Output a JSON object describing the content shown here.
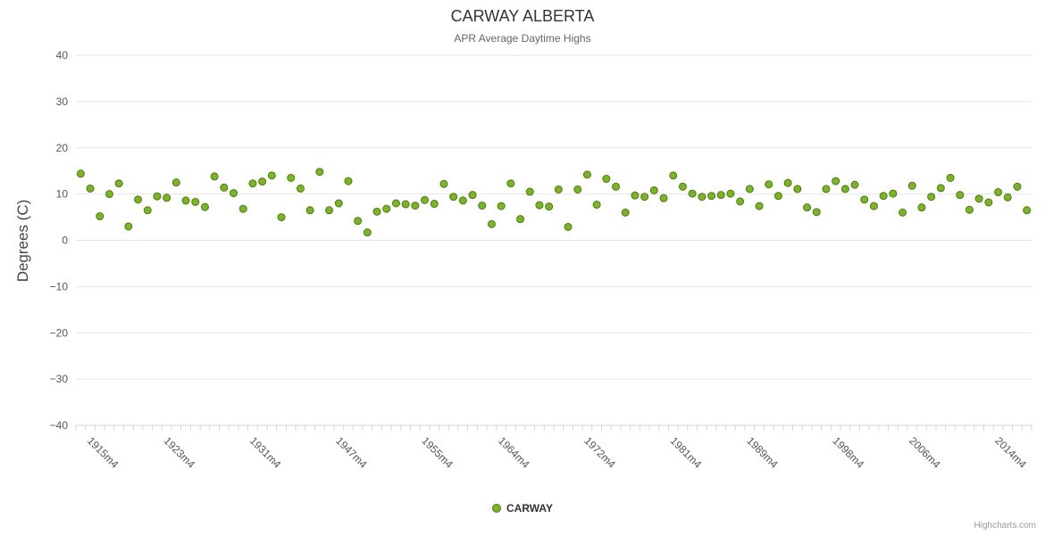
{
  "header": {
    "title": "CARWAY ALBERTA",
    "subtitle": "APR Average Daytime Highs"
  },
  "legend": {
    "label": "CARWAY"
  },
  "credits": "Highcharts.com",
  "colors": {
    "point_fill": "#7cb32a",
    "point_stroke": "#4e7a10",
    "grid": "#e6e6e6",
    "axis": "#ccd6eb",
    "tick_text": "#555555"
  },
  "chart_data": {
    "type": "scatter",
    "title": "CARWAY ALBERTA",
    "subtitle": "APR Average Daytime Highs",
    "xlabel": "",
    "ylabel": "Degrees (C)",
    "ylim": [
      -40,
      40
    ],
    "yticks": [
      40,
      30,
      20,
      10,
      0,
      -10,
      -20,
      -30,
      -40
    ],
    "grid": true,
    "legend_position": "bottom",
    "x_tick_labels": [
      {
        "index": 1,
        "label": "1915m4"
      },
      {
        "index": 9,
        "label": "1923m4"
      },
      {
        "index": 18,
        "label": "1931m4"
      },
      {
        "index": 27,
        "label": "1947m4"
      },
      {
        "index": 36,
        "label": "1955m4"
      },
      {
        "index": 44,
        "label": "1964m4"
      },
      {
        "index": 53,
        "label": "1972m4"
      },
      {
        "index": 62,
        "label": "1981m4"
      },
      {
        "index": 70,
        "label": "1989m4"
      },
      {
        "index": 79,
        "label": "1998m4"
      },
      {
        "index": 87,
        "label": "2006m4"
      },
      {
        "index": 96,
        "label": "2014m4"
      }
    ],
    "series": [
      {
        "name": "CARWAY",
        "values": [
          14.4,
          11.2,
          5.2,
          10.0,
          12.3,
          3.0,
          8.8,
          6.5,
          9.5,
          9.2,
          12.5,
          8.6,
          8.3,
          7.2,
          13.8,
          11.4,
          10.2,
          6.8,
          12.3,
          12.7,
          14.0,
          5.0,
          13.5,
          11.2,
          6.5,
          14.8,
          6.5,
          8.0,
          12.8,
          4.2,
          1.7,
          6.2,
          6.8,
          8.0,
          7.8,
          7.5,
          8.7,
          7.9,
          12.2,
          9.4,
          8.6,
          9.8,
          7.5,
          3.5,
          7.4,
          12.3,
          4.6,
          10.5,
          7.6,
          7.3,
          11.0,
          2.9,
          11.0,
          14.2,
          7.7,
          13.3,
          11.6,
          6.0,
          9.7,
          9.4,
          10.8,
          9.1,
          14.0,
          11.6,
          10.1,
          9.4,
          9.6,
          9.8,
          10.1,
          8.4,
          11.1,
          7.4,
          12.1,
          9.6,
          12.4,
          11.1,
          7.1,
          6.1,
          11.1,
          12.8,
          11.1,
          12.0,
          8.8,
          7.4,
          9.6,
          10.1,
          6.0,
          11.8,
          7.1,
          9.4,
          11.3,
          13.5,
          9.8,
          6.6,
          9.0,
          8.2,
          10.4,
          9.3,
          11.6,
          6.5
        ]
      }
    ]
  }
}
